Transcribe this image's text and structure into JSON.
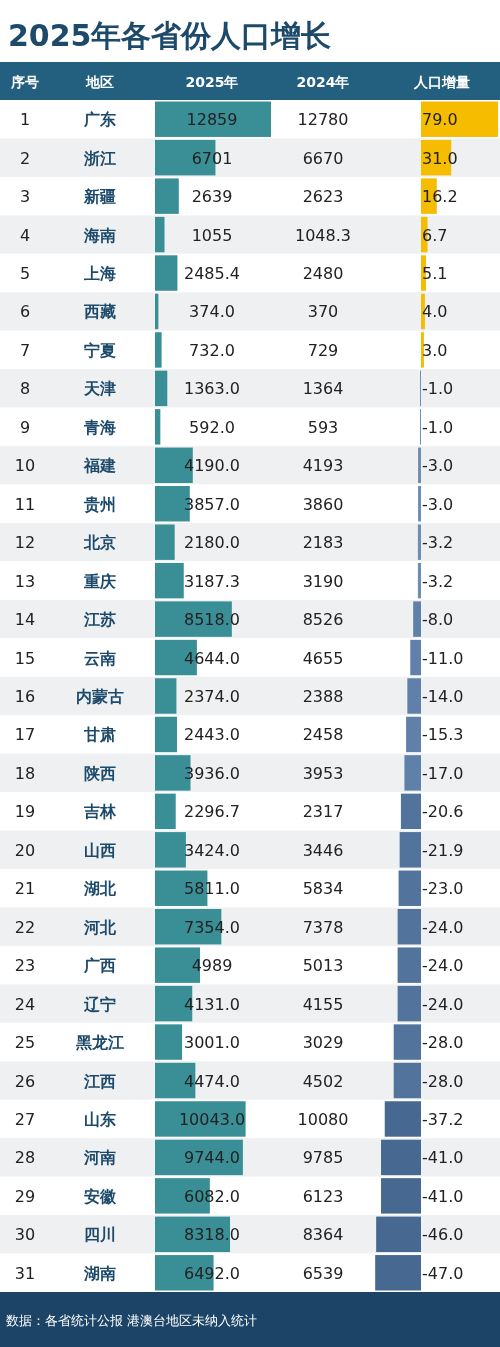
{
  "chart_data": [
    {
      "type": "other",
      "title": "2025年各省份人口增长",
      "annotations": [
        "数据：各省统计公报 港澳台地区未纳入统计"
      ]
    },
    {
      "type": "bar",
      "orientation": "horizontal",
      "title": "2025年",
      "ylabel": "地区",
      "color": "#3a8f96",
      "data_labels": true,
      "categories": [
        "广东",
        "浙江",
        "新疆",
        "海南",
        "上海",
        "西藏",
        "宁夏",
        "天津",
        "青海",
        "福建",
        "贵州",
        "北京",
        "重庆",
        "江苏",
        "云南",
        "内蒙古",
        "甘肃",
        "陕西",
        "吉林",
        "山西",
        "湖北",
        "河北",
        "广西",
        "辽宁",
        "黑龙江",
        "江西",
        "山东",
        "河南",
        "安徽",
        "四川",
        "湖南"
      ],
      "values": [
        12859,
        6701,
        2639,
        1055,
        2485.4,
        374.0,
        732.0,
        1363.0,
        592.0,
        4190.0,
        3857.0,
        2180.0,
        3187.3,
        8518.0,
        4644.0,
        2374.0,
        2443.0,
        3936.0,
        2296.7,
        3424.0,
        5811.0,
        7354.0,
        4989,
        4131.0,
        3001.0,
        4474.0,
        10043.0,
        9744.0,
        6082.0,
        8318.0,
        6492.0
      ],
      "value_labels": [
        "12859",
        "6701",
        "2639",
        "1055",
        "2485.4",
        "374.0",
        "732.0",
        "1363.0",
        "592.0",
        "4190.0",
        "3857.0",
        "2180.0",
        "3187.3",
        "8518.0",
        "4644.0",
        "2374.0",
        "2443.0",
        "3936.0",
        "2296.7",
        "3424.0",
        "5811.0",
        "7354.0",
        "4989",
        "4131.0",
        "3001.0",
        "4474.0",
        "10043.0",
        "9744.0",
        "6082.0",
        "8318.0",
        "6492.0"
      ]
    },
    {
      "type": "other",
      "title": "2024年",
      "annotations": [
        "12780",
        "6670",
        "2623",
        "1048.3",
        "2480",
        "370",
        "729",
        "1364",
        "593",
        "4193",
        "3860",
        "2183",
        "3190",
        "8526",
        "4655",
        "2388",
        "2458",
        "3953",
        "2317",
        "3446",
        "5834",
        "7378",
        "5013",
        "4155",
        "3029",
        "4502",
        "10080",
        "9785",
        "6123",
        "8364",
        "6539"
      ]
    },
    {
      "type": "bar",
      "orientation": "horizontal",
      "title": "人口增量",
      "ylabel": "序号",
      "data_labels": true,
      "categories": [
        "1",
        "2",
        "3",
        "4",
        "5",
        "6",
        "7",
        "8",
        "9",
        "10",
        "11",
        "12",
        "13",
        "14",
        "15",
        "16",
        "17",
        "18",
        "19",
        "20",
        "21",
        "22",
        "23",
        "24",
        "25",
        "26",
        "27",
        "28",
        "29",
        "30",
        "31"
      ],
      "values": [
        79.0,
        31.0,
        16.2,
        6.7,
        5.1,
        4.0,
        3.0,
        -1.0,
        -1.0,
        -3.0,
        -3.0,
        -3.2,
        -3.2,
        -8.0,
        -11.0,
        -14.0,
        -15.3,
        -17.0,
        -20.6,
        -21.9,
        -23.0,
        -24.0,
        -24.0,
        -24.0,
        -28.0,
        -28.0,
        -37.2,
        -41.0,
        -41.0,
        -46.0,
        -47.0
      ],
      "value_labels": [
        "79.0",
        "31.0",
        "16.2",
        "6.7",
        "5.1",
        "4.0",
        "3.0",
        "-1.0",
        "-1.0",
        "-3.0",
        "-3.0",
        "-3.2",
        "-3.2",
        "-8.0",
        "-11.0",
        "-14.0",
        "-15.3",
        "-17.0",
        "-20.6",
        "-21.9",
        "-23.0",
        "-24.0",
        "-24.0",
        "-24.0",
        "-28.0",
        "-28.0",
        "-37.2",
        "-41.0",
        "-41.0",
        "-46.0",
        "-47.0"
      ],
      "colors": [
        "#f5bc00",
        "#f5bc00",
        "#f5bc00",
        "#f5bc00",
        "#f5bc00",
        "#f5bc00",
        "#f5bc00",
        "#6d8db3",
        "#6d8db3",
        "#6d8db3",
        "#6d8db3",
        "#6d8db3",
        "#6d8db3",
        "#5f80a8",
        "#5f80a8",
        "#5f80a8",
        "#5f80a8",
        "#5f80a8",
        "#52739c",
        "#52739c",
        "#52739c",
        "#52739c",
        "#52739c",
        "#52739c",
        "#52739c",
        "#52739c",
        "#466891",
        "#466891",
        "#466891",
        "#466891",
        "#466891"
      ]
    }
  ]
}
